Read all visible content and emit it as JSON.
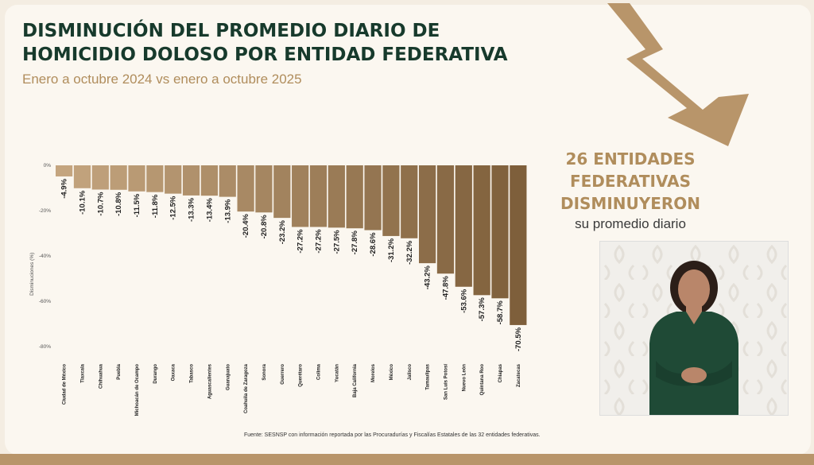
{
  "header": {
    "title_line1": "DISMINUCIÓN DEL PROMEDIO DIARIO DE",
    "title_line2": "HOMICIDIO DOLOSO POR ENTIDAD FEDERATIVA",
    "subtitle": "Enero a octubre 2024 vs enero a octubre 2025"
  },
  "highlight": {
    "line1": "26 ENTIDADES",
    "line2": "FEDERATIVAS",
    "line3": "DISMINUYERON",
    "line4": "su promedio diario"
  },
  "source": "Fuente: SESNSP con información reportada por las Procuradurías y Fiscalías Estatales de las 32 entidades federativas.",
  "colors": {
    "title": "#173a2c",
    "accent": "#b08d5c",
    "bar_light": "#c4a57f",
    "bar_dark": "#7e5f3b",
    "background": "#fbf7f0"
  },
  "chart_data": {
    "type": "bar",
    "title": "",
    "xlabel": "",
    "ylabel": "Disminuciones (%)",
    "ylim": [
      -80,
      0
    ],
    "yticks": [
      "0%",
      "-20%",
      "-40%",
      "-60%",
      "-80%"
    ],
    "ytick_values": [
      0,
      -20,
      -40,
      -60,
      -80
    ],
    "grid": false,
    "categories": [
      "Ciudad de México",
      "Tlaxcala",
      "Chihuahua",
      "Puebla",
      "Michoacán de Ocampo",
      "Durango",
      "Oaxaca",
      "Tabasco",
      "Aguascalientes",
      "Guanajuato",
      "Coahuila de Zaragoza",
      "Sonora",
      "Guerrero",
      "Querétaro",
      "Colima",
      "Yucatán",
      "Baja California",
      "Morelos",
      "México",
      "Jalisco",
      "Tamaulipas",
      "San Luis Potosí",
      "Nuevo León",
      "Quintana Roo",
      "Chiapas",
      "Zacatecas"
    ],
    "values": [
      -4.9,
      -10.1,
      -10.7,
      -10.8,
      -11.5,
      -11.8,
      -12.5,
      -13.3,
      -13.4,
      -13.9,
      -20.4,
      -20.8,
      -23.2,
      -27.2,
      -27.2,
      -27.5,
      -27.8,
      -28.6,
      -31.2,
      -32.2,
      -43.2,
      -47.8,
      -53.6,
      -57.3,
      -58.7,
      -70.5
    ],
    "data_labels": [
      "-4.9%",
      "-10.1%",
      "-10.7%",
      "-10.8%",
      "-11.5%",
      "-11.8%",
      "-12.5%",
      "-13.3%",
      "-13.4%",
      "-13.9%",
      "-20.4%",
      "-20.8%",
      "-23.2%",
      "-27.2%",
      "-27.2%",
      "-27.5%",
      "-27.8%",
      "-28.6%",
      "-31.2%",
      "-32.2%",
      "-43.2%",
      "-47.8%",
      "-53.6%",
      "-57.3%",
      "-58.7%",
      "-70.5%"
    ]
  }
}
